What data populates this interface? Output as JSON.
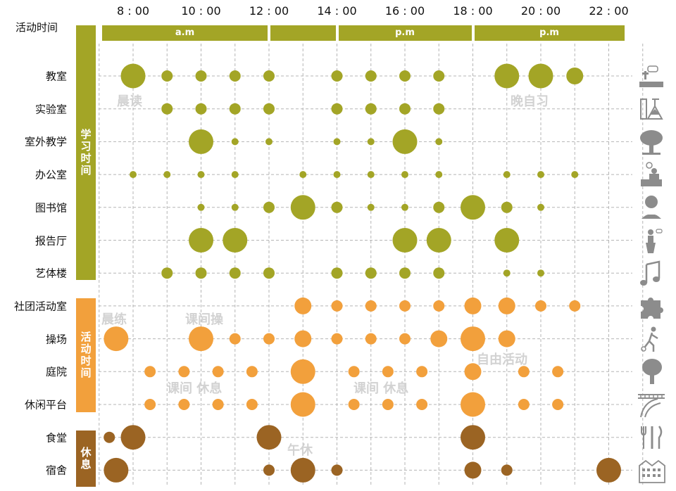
{
  "chart_data": {
    "type": "scatter",
    "title": "活动时间",
    "hour_ticks": [
      "8 : 00",
      "10 : 00",
      "12 : 00",
      "14 : 00",
      "16 : 00",
      "18 : 00",
      "20 : 00",
      "22 : 00"
    ],
    "periods": [
      {
        "label": "a.m",
        "start": 7,
        "end": 12
      },
      {
        "label": "",
        "start": 12,
        "end": 14
      },
      {
        "label": "p.m",
        "start": 14,
        "end": 18
      },
      {
        "label": "p.m",
        "start": 18,
        "end": 22.5
      }
    ],
    "groups": [
      {
        "label": "学习时间",
        "color": "#a3a526"
      },
      {
        "label": "活动时间",
        "color": "#f2a03c"
      },
      {
        "label": "休息",
        "color": "#9b6423"
      }
    ],
    "rows": [
      {
        "name": "教室",
        "group": 0,
        "icon": "classroom-icon",
        "points": [
          [
            8,
            3
          ],
          [
            9,
            1
          ],
          [
            10,
            1
          ],
          [
            11,
            1
          ],
          [
            12,
            1
          ],
          [
            14,
            1
          ],
          [
            15,
            1
          ],
          [
            16,
            1
          ],
          [
            17,
            1
          ],
          [
            19,
            3
          ],
          [
            20,
            3
          ],
          [
            21,
            2
          ]
        ]
      },
      {
        "name": "实验室",
        "group": 0,
        "icon": "laboratory-flask-icon",
        "points": [
          [
            9,
            1
          ],
          [
            10,
            1
          ],
          [
            11,
            1
          ],
          [
            12,
            1
          ],
          [
            14,
            1
          ],
          [
            15,
            1
          ],
          [
            16,
            1
          ],
          [
            17,
            1
          ]
        ]
      },
      {
        "name": "室外教学",
        "group": 0,
        "icon": "tree-icon",
        "points": [
          [
            10,
            3
          ],
          [
            11,
            0
          ],
          [
            12,
            0
          ],
          [
            14,
            0
          ],
          [
            15,
            0
          ],
          [
            16,
            3
          ],
          [
            17,
            0
          ]
        ]
      },
      {
        "name": "办公室",
        "group": 0,
        "icon": "office-desk-icon",
        "points": [
          [
            8,
            0
          ],
          [
            9,
            0
          ],
          [
            10,
            0
          ],
          [
            11,
            0
          ],
          [
            13,
            0
          ],
          [
            14,
            0
          ],
          [
            15,
            0
          ],
          [
            16,
            0
          ],
          [
            17,
            0
          ],
          [
            19,
            0
          ],
          [
            20,
            0
          ],
          [
            21,
            0
          ]
        ]
      },
      {
        "name": "图书馆",
        "group": 0,
        "icon": "reader-icon",
        "points": [
          [
            10,
            0
          ],
          [
            11,
            0
          ],
          [
            12,
            1
          ],
          [
            13,
            3
          ],
          [
            14,
            1
          ],
          [
            15,
            0
          ],
          [
            16,
            0
          ],
          [
            17,
            1
          ],
          [
            18,
            3
          ],
          [
            19,
            1
          ],
          [
            20,
            0
          ]
        ]
      },
      {
        "name": "报告厅",
        "group": 0,
        "icon": "lecture-podium-icon",
        "points": [
          [
            10,
            3
          ],
          [
            11,
            3
          ],
          [
            16,
            3
          ],
          [
            17,
            3
          ],
          [
            19,
            3
          ]
        ]
      },
      {
        "name": "艺体楼",
        "group": 0,
        "icon": "music-note-icon",
        "points": [
          [
            9,
            1
          ],
          [
            10,
            1
          ],
          [
            11,
            1
          ],
          [
            12,
            1
          ],
          [
            14,
            1
          ],
          [
            15,
            1
          ],
          [
            16,
            1
          ],
          [
            17,
            1
          ],
          [
            19,
            0
          ],
          [
            20,
            0
          ]
        ]
      },
      {
        "name": "社团活动室",
        "group": 1,
        "icon": "puzzle-icon",
        "points": [
          [
            13,
            2
          ],
          [
            14,
            1
          ],
          [
            15,
            1
          ],
          [
            16,
            1
          ],
          [
            17,
            1
          ],
          [
            18,
            2
          ],
          [
            19,
            2
          ],
          [
            20,
            1
          ],
          [
            21,
            1
          ]
        ]
      },
      {
        "name": "操场",
        "group": 1,
        "icon": "running-person-icon",
        "points": [
          [
            7.5,
            3
          ],
          [
            10,
            3
          ],
          [
            11,
            1
          ],
          [
            12,
            1
          ],
          [
            13,
            2
          ],
          [
            14,
            1
          ],
          [
            15,
            1
          ],
          [
            16,
            1
          ],
          [
            17,
            2
          ],
          [
            18,
            3
          ],
          [
            19,
            2
          ]
        ]
      },
      {
        "name": "庭院",
        "group": 1,
        "icon": "courtyard-tree-icon",
        "points": [
          [
            8.5,
            1
          ],
          [
            9.5,
            1
          ],
          [
            10.5,
            1
          ],
          [
            11.5,
            1
          ],
          [
            13,
            3
          ],
          [
            14.5,
            1
          ],
          [
            15.5,
            1
          ],
          [
            16.5,
            1
          ],
          [
            18,
            2
          ],
          [
            19.5,
            1
          ],
          [
            20.5,
            1
          ]
        ]
      },
      {
        "name": "休闲平台",
        "group": 1,
        "icon": "bridge-icon",
        "points": [
          [
            8.5,
            1
          ],
          [
            9.5,
            1
          ],
          [
            10.5,
            1
          ],
          [
            11.5,
            1
          ],
          [
            13,
            3
          ],
          [
            14.5,
            1
          ],
          [
            15.5,
            1
          ],
          [
            16.5,
            1
          ],
          [
            18,
            3
          ],
          [
            19.5,
            1
          ],
          [
            20.5,
            1
          ]
        ]
      },
      {
        "name": "食堂",
        "group": 2,
        "icon": "cutlery-icon",
        "points": [
          [
            7.3,
            1
          ],
          [
            8,
            3
          ],
          [
            12,
            3
          ],
          [
            18,
            3
          ]
        ]
      },
      {
        "name": "宿舍",
        "group": 2,
        "icon": "dormitory-building-icon",
        "points": [
          [
            7.5,
            3
          ],
          [
            12,
            1
          ],
          [
            13,
            3
          ],
          [
            14,
            1
          ],
          [
            18,
            2
          ],
          [
            19,
            1
          ],
          [
            22,
            3
          ]
        ]
      }
    ],
    "annotations": [
      "晨读",
      "晚自习",
      "晨练",
      "课间操",
      "自由活动",
      "课间 休息",
      "课间 休息",
      "午休"
    ]
  }
}
